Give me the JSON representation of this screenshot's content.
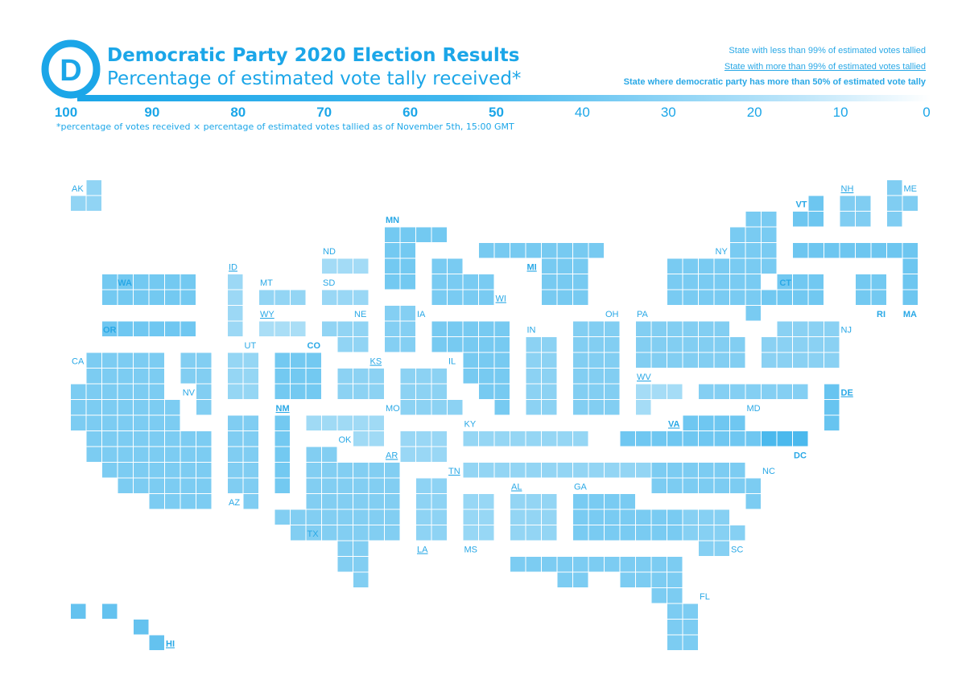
{
  "header": {
    "title": "Democratic Party 2020 Election Results",
    "subtitle": "Percentage of estimated vote tally received*",
    "footnote": "*percentage of votes received × percentage of estimated votes tallied as of November 5th, 15:00 GMT"
  },
  "legend": {
    "under99": "State with less than 99% of estimated votes tallied",
    "over99": "State with more than 99% of estimated votes tallied",
    "majority": "State where democratic party has more than 50% of estimated vote tally"
  },
  "colors": {
    "accent": "#1ba6e8",
    "gradient_high": "#1ba6e8",
    "gradient_low": "#ffffff"
  },
  "logo": {
    "letter": "D"
  },
  "chart_data": {
    "type": "heatmap",
    "scale": {
      "ticks": [
        100,
        90,
        80,
        70,
        60,
        50,
        40,
        30,
        20,
        10,
        0
      ],
      "bold_ticks": [
        100,
        90,
        80,
        70,
        60,
        50
      ]
    },
    "states": [
      {
        "name": "AK",
        "value": 38,
        "status": "less99",
        "majority": false
      },
      {
        "name": "HI",
        "value": 60,
        "status": "more99",
        "majority": true
      },
      {
        "name": "WA",
        "value": 52,
        "status": "less99",
        "majority": true
      },
      {
        "name": "OR",
        "value": 54,
        "status": "less99",
        "majority": true
      },
      {
        "name": "CA",
        "value": 48,
        "status": "less99",
        "majority": false
      },
      {
        "name": "NV",
        "value": 45,
        "status": "less99",
        "majority": false
      },
      {
        "name": "ID",
        "value": 33,
        "status": "more99",
        "majority": false
      },
      {
        "name": "MT",
        "value": 37,
        "status": "less99",
        "majority": false
      },
      {
        "name": "WY",
        "value": 27,
        "status": "more99",
        "majority": false
      },
      {
        "name": "UT",
        "value": 36,
        "status": "less99",
        "majority": false
      },
      {
        "name": "CO",
        "value": 52,
        "status": "less99",
        "majority": true
      },
      {
        "name": "NM",
        "value": 52,
        "status": "more99",
        "majority": true
      },
      {
        "name": "AZ",
        "value": 46,
        "status": "less99",
        "majority": false
      },
      {
        "name": "ND",
        "value": 30,
        "status": "less99",
        "majority": false
      },
      {
        "name": "SD",
        "value": 34,
        "status": "less99",
        "majority": false
      },
      {
        "name": "NE",
        "value": 38,
        "status": "less99",
        "majority": false
      },
      {
        "name": "KS",
        "value": 40,
        "status": "more99",
        "majority": false
      },
      {
        "name": "OK",
        "value": 31,
        "status": "less99",
        "majority": false
      },
      {
        "name": "TX",
        "value": 45,
        "status": "less99",
        "majority": false
      },
      {
        "name": "MN",
        "value": 52,
        "status": "less99",
        "majority": true
      },
      {
        "name": "IA",
        "value": 44,
        "status": "less99",
        "majority": false
      },
      {
        "name": "MO",
        "value": 40,
        "status": "less99",
        "majority": false
      },
      {
        "name": "AR",
        "value": 34,
        "status": "more99",
        "majority": false
      },
      {
        "name": "LA",
        "value": 39,
        "status": "more99",
        "majority": false
      },
      {
        "name": "WI",
        "value": 49,
        "status": "more99",
        "majority": false
      },
      {
        "name": "MI",
        "value": 50,
        "status": "more99",
        "majority": true
      },
      {
        "name": "IL",
        "value": 50,
        "status": "less99",
        "majority": false
      },
      {
        "name": "IN",
        "value": 40,
        "status": "less99",
        "majority": false
      },
      {
        "name": "OH",
        "value": 45,
        "status": "less99",
        "majority": false
      },
      {
        "name": "KY",
        "value": 36,
        "status": "less99",
        "majority": false
      },
      {
        "name": "TN",
        "value": 37,
        "status": "more99",
        "majority": false
      },
      {
        "name": "MS",
        "value": 35,
        "status": "less99",
        "majority": false
      },
      {
        "name": "AL",
        "value": 37,
        "status": "more99",
        "majority": false
      },
      {
        "name": "GA",
        "value": 49,
        "status": "less99",
        "majority": false
      },
      {
        "name": "FL",
        "value": 48,
        "status": "less99",
        "majority": false
      },
      {
        "name": "SC",
        "value": 43,
        "status": "less99",
        "majority": false
      },
      {
        "name": "NC",
        "value": 48,
        "status": "less99",
        "majority": false
      },
      {
        "name": "VA",
        "value": 54,
        "status": "more99",
        "majority": true
      },
      {
        "name": "WV",
        "value": 29,
        "status": "more99",
        "majority": false
      },
      {
        "name": "PA",
        "value": 45,
        "status": "less99",
        "majority": false
      },
      {
        "name": "NY",
        "value": 49,
        "status": "less99",
        "majority": false
      },
      {
        "name": "NJ",
        "value": 41,
        "status": "less99",
        "majority": false
      },
      {
        "name": "MD",
        "value": 44,
        "status": "less99",
        "majority": false
      },
      {
        "name": "DE",
        "value": 58,
        "status": "more99",
        "majority": true
      },
      {
        "name": "DC",
        "value": 73,
        "status": "less99",
        "majority": true
      },
      {
        "name": "CT",
        "value": 53,
        "status": "less99",
        "majority": true
      },
      {
        "name": "RI",
        "value": 52,
        "status": "less99",
        "majority": true
      },
      {
        "name": "MA",
        "value": 55,
        "status": "less99",
        "majority": true
      },
      {
        "name": "VT",
        "value": 55,
        "status": "less99",
        "majority": true
      },
      {
        "name": "NH",
        "value": 46,
        "status": "more99",
        "majority": false
      },
      {
        "name": "ME",
        "value": 46,
        "status": "less99",
        "majority": false
      }
    ]
  }
}
